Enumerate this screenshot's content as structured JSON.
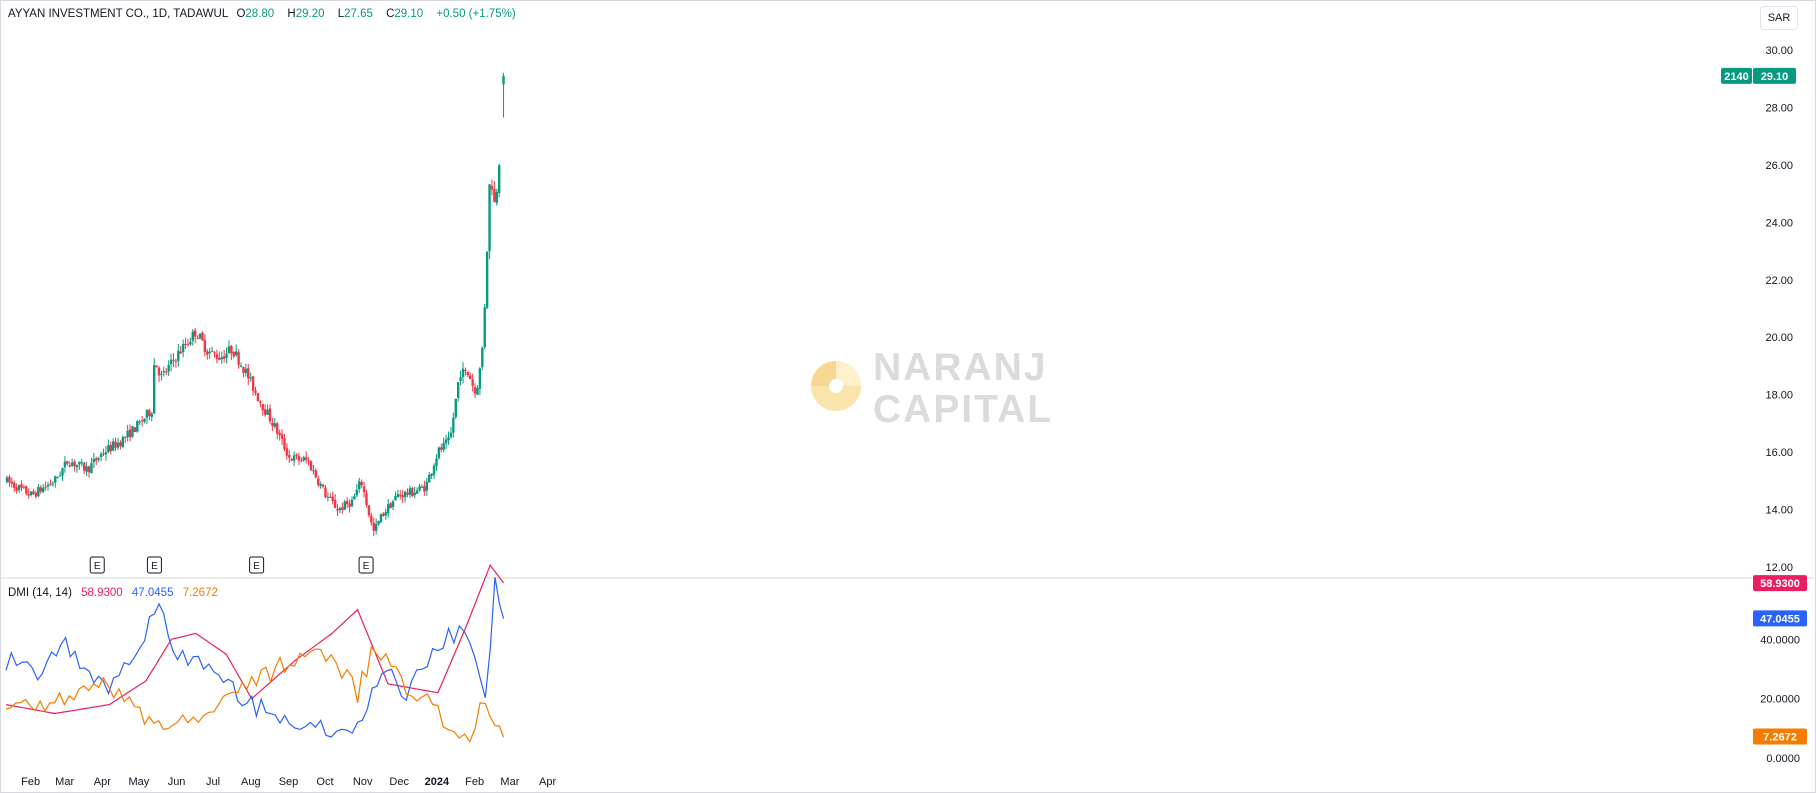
{
  "header": {
    "symbol": "AYYAN INVESTMENT CO., 1D, TADAWUL",
    "open_label": "O",
    "open": "28.80",
    "high_label": "H",
    "high": "29.20",
    "low_label": "L",
    "low": "27.65",
    "close_label": "C",
    "close": "29.10",
    "change": "+0.50 (+1.75%)"
  },
  "currency": "SAR",
  "watermark": {
    "line1": "NARANJ",
    "line2": "CAPITAL"
  },
  "price_badge": {
    "countdown": "2140",
    "price": "29.10"
  },
  "dmi": {
    "label": "DMI (14, 14)",
    "adx": "58.9300",
    "plus_di": "47.0455",
    "minus_di": "7.2672"
  },
  "colors": {
    "up": "#089981",
    "down": "#f23645",
    "adx": "#e91e63",
    "plus_di": "#2962ff",
    "minus_di": "#f57c00"
  },
  "chart_data": {
    "type": "candlestick",
    "price_axis": {
      "ticks": [
        "30.00",
        "28.00",
        "26.00",
        "24.00",
        "22.00",
        "20.00",
        "18.00",
        "16.00",
        "14.00",
        "12.00"
      ],
      "range": [
        12,
        30
      ]
    },
    "time_axis": [
      "Feb",
      "Mar",
      "Apr",
      "May",
      "Jun",
      "Jul",
      "Aug",
      "Sep",
      "Oct",
      "Nov",
      "Dec",
      "2024",
      "Feb",
      "Mar",
      "Apr"
    ],
    "earnings_marker": "E",
    "earnings_dates": [
      "2023-04-05",
      "2023-05-22",
      "2023-08-14",
      "2023-11-12"
    ],
    "price_path": [
      [
        "2023-01-20",
        15.0
      ],
      [
        "2023-02-10",
        14.5
      ],
      [
        "2023-03-01",
        15.0
      ],
      [
        "2023-03-12",
        15.7
      ],
      [
        "2023-03-28",
        15.4
      ],
      [
        "2023-04-10",
        16.0
      ],
      [
        "2023-04-25",
        16.4
      ],
      [
        "2023-05-10",
        17.0
      ],
      [
        "2023-05-20",
        17.5
      ],
      [
        "2023-05-22",
        19.2
      ],
      [
        "2023-05-28",
        18.6
      ],
      [
        "2023-06-10",
        19.4
      ],
      [
        "2023-06-25",
        20.2
      ],
      [
        "2023-07-05",
        19.5
      ],
      [
        "2023-07-15",
        19.3
      ],
      [
        "2023-07-25",
        19.6
      ],
      [
        "2023-08-05",
        18.8
      ],
      [
        "2023-08-14",
        18.0
      ],
      [
        "2023-08-30",
        16.8
      ],
      [
        "2023-09-10",
        15.8
      ],
      [
        "2023-09-25",
        15.7
      ],
      [
        "2023-10-10",
        14.5
      ],
      [
        "2023-10-20",
        14.0
      ],
      [
        "2023-11-01",
        14.3
      ],
      [
        "2023-11-08",
        15.0
      ],
      [
        "2023-11-18",
        13.2
      ],
      [
        "2023-11-25",
        13.8
      ],
      [
        "2023-12-08",
        14.5
      ],
      [
        "2023-12-20",
        14.6
      ],
      [
        "2023-12-31",
        14.8
      ],
      [
        "2024-01-10",
        16.0
      ],
      [
        "2024-01-20",
        16.4
      ],
      [
        "2024-01-28",
        18.8
      ],
      [
        "2024-02-05",
        18.7
      ],
      [
        "2024-02-10",
        18.0
      ],
      [
        "2024-02-15",
        19.2
      ],
      [
        "2024-02-18",
        21.5
      ],
      [
        "2024-02-22",
        25.8
      ],
      [
        "2024-02-26",
        24.5
      ],
      [
        "2024-03-01",
        26.5
      ],
      [
        "2024-03-04",
        29.1
      ]
    ],
    "last": {
      "open": 28.8,
      "high": 29.2,
      "low": 27.65,
      "close": 29.1
    },
    "dmi_axis": {
      "ticks": [
        "40.0000",
        "20.0000",
        "0.0000"
      ],
      "range": [
        0,
        60
      ]
    },
    "series": [
      {
        "key": "adx",
        "values": [
          [
            "2023-01-20",
            18.0
          ],
          [
            "2023-03-01",
            15.0
          ],
          [
            "2023-04-15",
            18.0
          ],
          [
            "2023-05-15",
            26.0
          ],
          [
            "2023-06-05",
            40.0
          ],
          [
            "2023-06-25",
            42.0
          ],
          [
            "2023-07-20",
            35.0
          ],
          [
            "2023-08-10",
            20.0
          ],
          [
            "2023-09-15",
            33.0
          ],
          [
            "2023-10-15",
            42.0
          ],
          [
            "2023-11-05",
            50.0
          ],
          [
            "2023-11-30",
            25.0
          ],
          [
            "2024-01-10",
            22.0
          ],
          [
            "2024-02-02",
            44.0
          ],
          [
            "2024-02-22",
            65.0
          ],
          [
            "2024-03-04",
            59.0
          ]
        ]
      },
      {
        "key": "plus_di",
        "values": [
          [
            "2023-01-20",
            33.0
          ],
          [
            "2023-02-15",
            27.0
          ],
          [
            "2023-03-10",
            39.0
          ],
          [
            "2023-04-10",
            23.0
          ],
          [
            "2023-05-10",
            36.0
          ],
          [
            "2023-05-22",
            52.0
          ],
          [
            "2023-06-10",
            35.0
          ],
          [
            "2023-07-10",
            30.0
          ],
          [
            "2023-08-10",
            18.0
          ],
          [
            "2023-09-10",
            12.0
          ],
          [
            "2023-10-10",
            10.0
          ],
          [
            "2023-11-05",
            9.0
          ],
          [
            "2023-11-25",
            30.0
          ],
          [
            "2023-12-15",
            22.0
          ],
          [
            "2024-01-10",
            38.0
          ],
          [
            "2024-02-01",
            44.0
          ],
          [
            "2024-02-18",
            22.0
          ],
          [
            "2024-02-26",
            58.0
          ],
          [
            "2024-03-04",
            47.0
          ]
        ]
      },
      {
        "key": "minus_di",
        "values": [
          [
            "2023-01-20",
            20.0
          ],
          [
            "2023-03-01",
            18.0
          ],
          [
            "2023-04-10",
            25.0
          ],
          [
            "2023-05-10",
            15.0
          ],
          [
            "2023-06-10",
            12.0
          ],
          [
            "2023-07-10",
            18.0
          ],
          [
            "2023-08-10",
            24.0
          ],
          [
            "2023-09-10",
            33.0
          ],
          [
            "2023-10-10",
            35.0
          ],
          [
            "2023-11-05",
            22.0
          ],
          [
            "2023-11-20",
            38.0
          ],
          [
            "2023-12-15",
            25.0
          ],
          [
            "2024-01-10",
            15.0
          ],
          [
            "2024-02-01",
            5.0
          ],
          [
            "2024-02-18",
            19.0
          ],
          [
            "2024-02-26",
            12.0
          ],
          [
            "2024-03-04",
            7.0
          ]
        ]
      }
    ]
  }
}
